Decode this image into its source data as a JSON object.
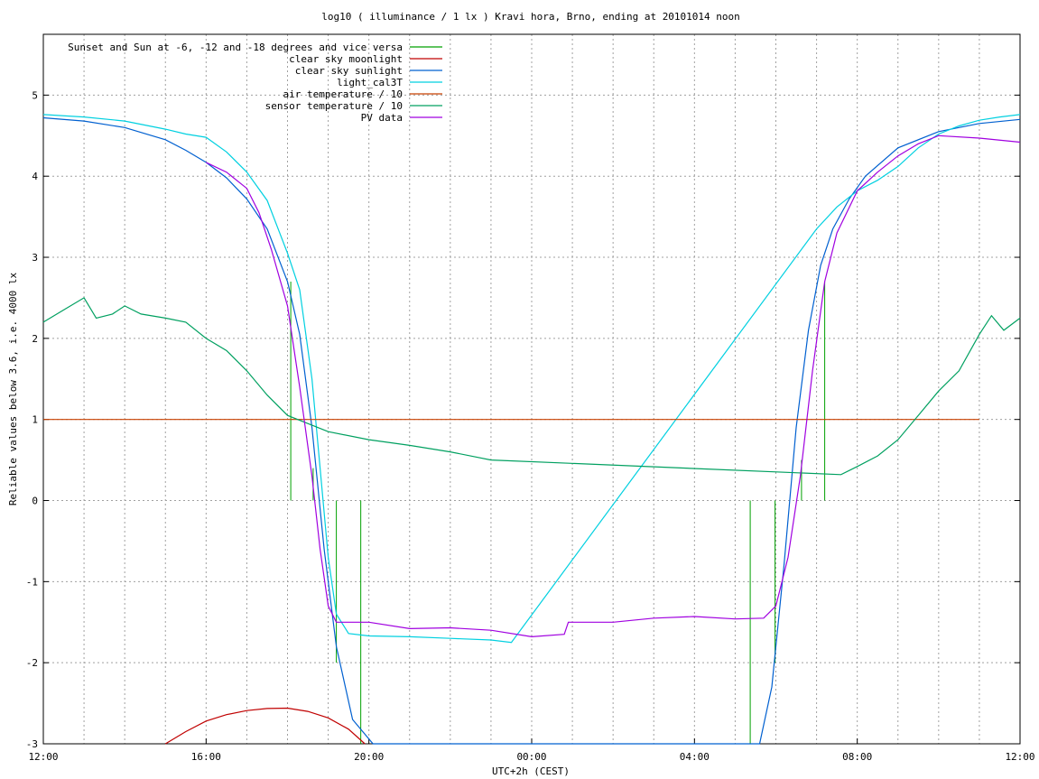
{
  "chart_data": {
    "type": "line",
    "title": "log10 ( illuminance / 1 lx ) Kravi hora, Brno, ending at 20101014 noon",
    "xlabel": "UTC+2h (CEST)",
    "ylabel": "Reliable values below 3.6, i.e. 4000 lx",
    "x_unit": "hours",
    "xlim": [
      12,
      36
    ],
    "ylim": [
      -3,
      5.75
    ],
    "grid": true,
    "legend_position": "top-left",
    "xticks": [
      {
        "value": 12,
        "label": "12:00"
      },
      {
        "value": 16,
        "label": "16:00"
      },
      {
        "value": 20,
        "label": "20:00"
      },
      {
        "value": 24,
        "label": "00:00"
      },
      {
        "value": 28,
        "label": "04:00"
      },
      {
        "value": 32,
        "label": "08:00"
      },
      {
        "value": 36,
        "label": "12:00"
      }
    ],
    "yticks": [
      -3,
      -2,
      -1,
      0,
      1,
      2,
      3,
      4,
      5
    ],
    "series": [
      {
        "name": "Sunset and Sun at -6, -12 and -18 degrees and vice versa",
        "color": "#00a000",
        "style": "impulses",
        "x": [
          18.08,
          18.63,
          19.2,
          19.8,
          29.37,
          29.98,
          30.63,
          31.2
        ],
        "y": [
          2.7,
          0.4,
          -2.0,
          -3.0,
          -3.0,
          -2.0,
          0.5,
          2.7
        ]
      },
      {
        "name": "clear sky moonlight",
        "color": "#c00000",
        "x": [
          15.0,
          15.5,
          16.0,
          16.5,
          17.0,
          17.5,
          18.0,
          18.5,
          19.0,
          19.5,
          19.9
        ],
        "y": [
          -3.0,
          -2.85,
          -2.72,
          -2.64,
          -2.59,
          -2.565,
          -2.56,
          -2.6,
          -2.68,
          -2.82,
          -3.0
        ]
      },
      {
        "name": "clear sky sunlight",
        "color": "#0060d0",
        "x": [
          12,
          13,
          14,
          15,
          15.5,
          16,
          16.5,
          17,
          17.5,
          18,
          18.3,
          18.6,
          18.9,
          19.2,
          19.6,
          20.1,
          29.6,
          29.9,
          30.2,
          30.5,
          30.8,
          31.1,
          31.4,
          31.8,
          32.2,
          33,
          34,
          35,
          36
        ],
        "y": [
          4.72,
          4.68,
          4.6,
          4.45,
          4.32,
          4.17,
          3.98,
          3.72,
          3.35,
          2.7,
          2.05,
          0.9,
          -0.6,
          -1.8,
          -2.7,
          -3.0,
          -3.0,
          -2.3,
          -0.8,
          0.9,
          2.1,
          2.9,
          3.35,
          3.72,
          4.0,
          4.35,
          4.55,
          4.65,
          4.7
        ]
      },
      {
        "name": "light_cal3T",
        "color": "#00d0e0",
        "x": [
          12,
          13,
          14,
          15,
          15.5,
          16,
          16.5,
          17,
          17.5,
          18,
          18.3,
          18.6,
          18.8,
          19.0,
          19.2,
          19.5,
          20.0,
          21.0,
          22.0,
          23.0,
          23.5,
          31.0,
          31.5,
          32.0,
          32.5,
          33.0,
          33.5,
          34.0,
          34.5,
          35.0,
          35.5,
          36
        ],
        "y": [
          4.76,
          4.73,
          4.68,
          4.58,
          4.52,
          4.48,
          4.3,
          4.05,
          3.7,
          3.05,
          2.6,
          1.5,
          0.4,
          -0.7,
          -1.4,
          -1.64,
          -1.67,
          -1.68,
          -1.7,
          -1.72,
          -1.75,
          3.35,
          3.62,
          3.82,
          3.95,
          4.12,
          4.35,
          4.52,
          4.62,
          4.69,
          4.73,
          4.76
        ]
      },
      {
        "name": "air temperature / 10",
        "color": "#c84000",
        "x": [
          12,
          35.0
        ],
        "y": [
          1.0,
          1.0
        ]
      },
      {
        "name": "sensor temperature / 10",
        "color": "#00a060",
        "x": [
          12,
          12.5,
          13.0,
          13.3,
          13.7,
          14.0,
          14.4,
          15.0,
          15.5,
          16.0,
          16.5,
          17.0,
          17.5,
          18.0,
          18.5,
          19.0,
          20.0,
          21.0,
          22.0,
          23.0,
          31.6,
          32.0,
          32.5,
          33.0,
          33.5,
          34.0,
          34.5,
          35.0,
          35.3,
          35.6,
          36
        ],
        "y": [
          2.2,
          2.35,
          2.5,
          2.25,
          2.3,
          2.4,
          2.3,
          2.25,
          2.2,
          2.0,
          1.85,
          1.6,
          1.3,
          1.05,
          0.95,
          0.85,
          0.75,
          0.68,
          0.6,
          0.5,
          0.32,
          0.42,
          0.55,
          0.75,
          1.05,
          1.35,
          1.6,
          2.05,
          2.28,
          2.1,
          2.25
        ]
      },
      {
        "name": "PV data",
        "color": "#a000e0",
        "x": [
          16.0,
          16.5,
          17.0,
          17.3,
          17.6,
          18.0,
          18.3,
          18.6,
          18.8,
          19.0,
          19.2,
          19.5,
          20.0,
          21.0,
          22.0,
          23.0,
          24.0,
          24.8,
          24.9,
          26.0,
          27.0,
          28.0,
          29.0,
          29.7,
          30.0,
          30.3,
          30.6,
          30.9,
          31.2,
          31.5,
          32.0,
          32.5,
          33.0,
          33.5,
          34.0,
          35.0,
          36
        ],
        "y": [
          4.17,
          4.05,
          3.85,
          3.55,
          3.1,
          2.4,
          1.4,
          0.3,
          -0.6,
          -1.3,
          -1.5,
          -1.5,
          -1.5,
          -1.58,
          -1.57,
          -1.6,
          -1.68,
          -1.65,
          -1.5,
          -1.5,
          -1.45,
          -1.43,
          -1.46,
          -1.45,
          -1.3,
          -0.7,
          0.3,
          1.6,
          2.7,
          3.3,
          3.82,
          4.05,
          4.25,
          4.4,
          4.5,
          4.47,
          4.42
        ]
      }
    ]
  }
}
